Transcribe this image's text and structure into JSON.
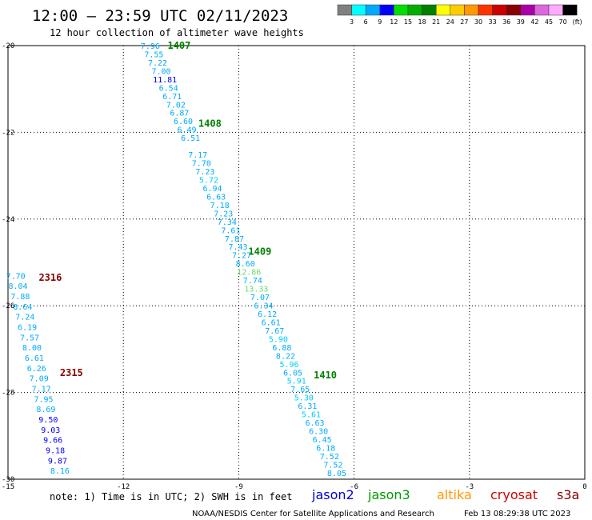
{
  "header": {
    "title": "12:00 – 23:59 UTC 02/11/2023",
    "subtitle": "12 hour collection of altimeter wave heights"
  },
  "colorbar": {
    "labels": [
      "3",
      "6",
      "9",
      "12",
      "15",
      "18",
      "21",
      "24",
      "27",
      "30",
      "33",
      "36",
      "39",
      "42",
      "45",
      "70"
    ],
    "unit": "(ft)",
    "colors": [
      "#808080",
      "#00ffff",
      "#00aaff",
      "#0000ff",
      "#00e000",
      "#00b000",
      "#008000",
      "#ffff00",
      "#ffcc00",
      "#ff9900",
      "#ff3300",
      "#cc0000",
      "#880000",
      "#aa00aa",
      "#dd66dd",
      "#ffaaff",
      "#000000"
    ]
  },
  "legend": {
    "note": "note:  1) Time is in UTC; 2) SWH is in feet",
    "items": [
      {
        "label": "jason2",
        "color": "#0000cc"
      },
      {
        "label": "jason3",
        "color": "#009900"
      },
      {
        "label": "altika",
        "color": "#ff9900"
      },
      {
        "label": "cryosat",
        "color": "#cc0000"
      },
      {
        "label": "s3a",
        "color": "#880000"
      }
    ]
  },
  "footer": {
    "credit": "NOAA/NESDIS Center for Satellite Applications and Research",
    "timestamp": "Feb 13 08:29:38 UTC 2023"
  },
  "chart_data": {
    "type": "scatter",
    "xlim": [
      -15,
      0
    ],
    "ylim": [
      -30,
      -20
    ],
    "x_ticks": [
      "-15",
      "-12",
      "-9",
      "-6",
      "-3",
      "0"
    ],
    "y_ticks": [
      "-20",
      "-22",
      "-24",
      "-26",
      "-28",
      "-30"
    ],
    "grid": true,
    "pass_labels": [
      {
        "text": "1407",
        "x": -10.85,
        "y": -20.0,
        "color": "#008000"
      },
      {
        "text": "1408",
        "x": -10.05,
        "y": -21.8,
        "color": "#008000"
      },
      {
        "text": "1409",
        "x": -8.75,
        "y": -24.75,
        "color": "#008000"
      },
      {
        "text": "1410",
        "x": -7.05,
        "y": -27.6,
        "color": "#008000"
      },
      {
        "text": "2316",
        "x": -14.2,
        "y": -25.35,
        "color": "#880000"
      },
      {
        "text": "2315",
        "x": -13.65,
        "y": -27.55,
        "color": "#880000"
      }
    ],
    "series": [
      {
        "name": "1407-1410",
        "start": [
          -11.3,
          -20.0
        ],
        "end": [
          -6.45,
          -29.85
        ],
        "values": [
          [
            "7.96",
            "#00aaff"
          ],
          [
            "7.55",
            "#00aaff"
          ],
          [
            "7.22",
            "#00aaff"
          ],
          [
            "7.00",
            "#00aaff"
          ],
          [
            "11.81",
            "#0000ff"
          ],
          [
            "6.54",
            "#00aaff"
          ],
          [
            "6.71",
            "#00aaff"
          ],
          [
            "7.02",
            "#00aaff"
          ],
          [
            "6.87",
            "#00aaff"
          ],
          [
            "6.60",
            "#00aaff"
          ],
          [
            "6.49",
            "#00aaff"
          ],
          [
            "6.51",
            "#00aaff"
          ],
          [
            "",
            "#00aaff"
          ],
          [
            "7.17",
            "#00aaff"
          ],
          [
            "7.70",
            "#00aaff"
          ],
          [
            "7.23",
            "#00aaff"
          ],
          [
            "5.72",
            "#00ccff"
          ],
          [
            "6.94",
            "#00aaff"
          ],
          [
            "6.63",
            "#00aaff"
          ],
          [
            "7.18",
            "#00aaff"
          ],
          [
            "7.23",
            "#00aaff"
          ],
          [
            "7.34",
            "#00aaff"
          ],
          [
            "7.61",
            "#00aaff"
          ],
          [
            "7.87",
            "#00aaff"
          ],
          [
            "7.43",
            "#00aaff"
          ],
          [
            "7.27",
            "#00aaff"
          ],
          [
            "8.60",
            "#00aaff"
          ],
          [
            "12.86",
            "#66dd66"
          ],
          [
            "7.74",
            "#00aaff"
          ],
          [
            "13.33",
            "#66dd66"
          ],
          [
            "7.07",
            "#00aaff"
          ],
          [
            "6.34",
            "#00aaff"
          ],
          [
            "6.12",
            "#00aaff"
          ],
          [
            "6.61",
            "#00aaff"
          ],
          [
            "7.67",
            "#00aaff"
          ],
          [
            "5.90",
            "#00ccff"
          ],
          [
            "6.88",
            "#00aaff"
          ],
          [
            "8.22",
            "#00aaff"
          ],
          [
            "5.96",
            "#00ccff"
          ],
          [
            "6.05",
            "#00aaff"
          ],
          [
            "5.91",
            "#00ccff"
          ],
          [
            "7.65",
            "#00aaff"
          ],
          [
            "5.30",
            "#00ccff"
          ],
          [
            "6.31",
            "#00aaff"
          ],
          [
            "5.61",
            "#00ccff"
          ],
          [
            "6.63",
            "#00aaff"
          ],
          [
            "6.30",
            "#00aaff"
          ],
          [
            "6.45",
            "#00aaff"
          ],
          [
            "6.18",
            "#00aaff"
          ],
          [
            "7.52",
            "#00aaff"
          ],
          [
            "7.52",
            "#00aaff"
          ],
          [
            "8.05",
            "#00aaff"
          ]
        ]
      },
      {
        "name": "2315-2316",
        "start": [
          -14.8,
          -25.3
        ],
        "end": [
          -13.65,
          -29.8
        ],
        "values": [
          [
            "7.70",
            "#00aaff"
          ],
          [
            "8.04",
            "#00aaff"
          ],
          [
            "7.88",
            "#00aaff"
          ],
          [
            "8.64",
            "#00aaff"
          ],
          [
            "7.24",
            "#00aaff"
          ],
          [
            "6.19",
            "#00aaff"
          ],
          [
            "7.57",
            "#00aaff"
          ],
          [
            "8.00",
            "#00aaff"
          ],
          [
            "6.61",
            "#00aaff"
          ],
          [
            "6.26",
            "#00aaff"
          ],
          [
            "7.09",
            "#00aaff"
          ],
          [
            "7.17",
            "#00aaff"
          ],
          [
            "7.95",
            "#00aaff"
          ],
          [
            "8.69",
            "#00aaff"
          ],
          [
            "9.50",
            "#0000ff"
          ],
          [
            "9.03",
            "#0000ff"
          ],
          [
            "9.66",
            "#0000ff"
          ],
          [
            "9.18",
            "#0000ff"
          ],
          [
            "9.87",
            "#0000ff"
          ],
          [
            "8.16",
            "#00aaff"
          ]
        ]
      }
    ]
  }
}
